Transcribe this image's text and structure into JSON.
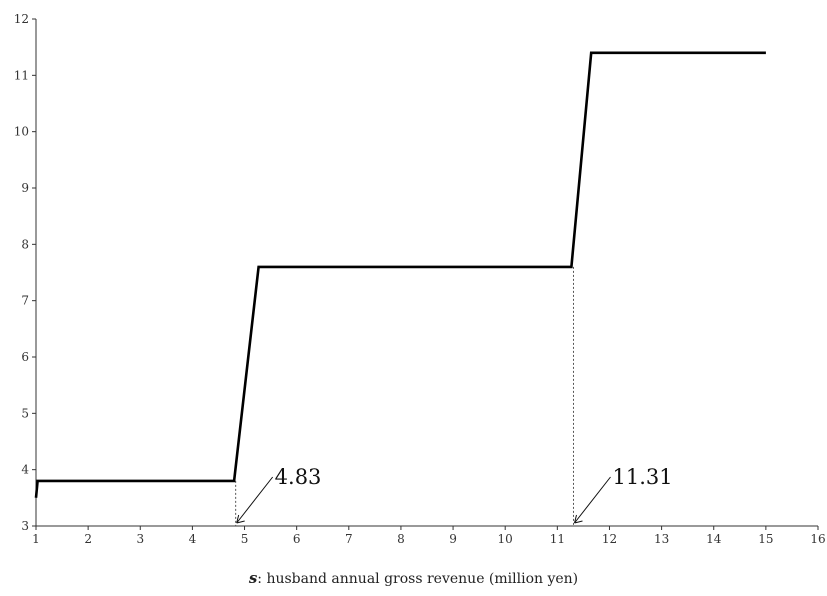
{
  "chart_data": {
    "type": "line",
    "title": "",
    "xlabel_symbol": "s",
    "xlabel_text": ": husband annual gross revenue (million yen)",
    "ylabel": "",
    "xlim": [
      1,
      16
    ],
    "ylim": [
      3,
      12
    ],
    "xticks": [
      1,
      2,
      3,
      4,
      5,
      6,
      7,
      8,
      9,
      10,
      11,
      12,
      13,
      14,
      15,
      16
    ],
    "yticks": [
      3,
      4,
      5,
      6,
      7,
      8,
      9,
      10,
      11,
      12
    ],
    "grid": false,
    "series": [
      {
        "x": [
          1.0,
          1.03,
          4.8,
          5.27,
          11.27,
          11.65,
          15.0
        ],
        "y": [
          3.5,
          3.8,
          3.8,
          7.6,
          7.6,
          11.4,
          11.4
        ]
      }
    ],
    "markers": [
      {
        "x": 4.83,
        "y_top": 3.8,
        "label": "4.83"
      },
      {
        "x": 11.31,
        "y_top": 7.6,
        "label": "11.31"
      }
    ]
  },
  "colors": {
    "line": "#000000",
    "axis": "#333333",
    "marker_line": "#555555"
  }
}
